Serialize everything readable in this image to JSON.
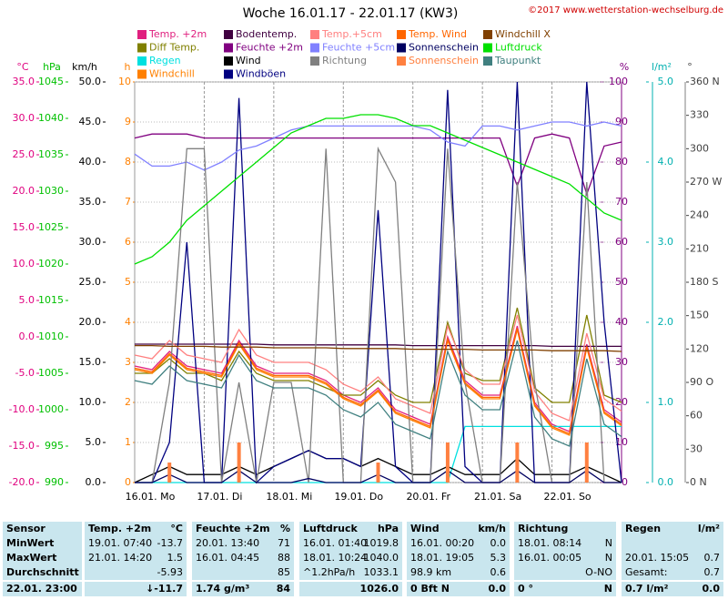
{
  "chart_data": {
    "type": "line",
    "title": "Woche 16.01.17 - 22.01.17 (KW3)",
    "copyright": "©2017 www.wetterstation-wechselburg.de",
    "grid": true,
    "xlim": [
      0,
      7
    ],
    "xticks": [
      {
        "value": 0,
        "label": "16.01. Mo"
      },
      {
        "value": 1,
        "label": "17.01. Di"
      },
      {
        "value": 2,
        "label": "18.01. Mi"
      },
      {
        "value": 3,
        "label": "19.01. Do"
      },
      {
        "value": 4,
        "label": "20.01. Fr"
      },
      {
        "value": 5,
        "label": "21.01. Sa"
      },
      {
        "value": 6,
        "label": "22.01. So"
      }
    ],
    "x": [
      0,
      0.25,
      0.5,
      0.75,
      1,
      1.25,
      1.5,
      1.75,
      2,
      2.25,
      2.5,
      2.75,
      3,
      3.25,
      3.5,
      3.75,
      4,
      4.25,
      4.5,
      4.75,
      5,
      5.25,
      5.5,
      5.75,
      6,
      6.25,
      6.5,
      6.75,
      7
    ],
    "axes": {
      "temp": {
        "label": "°C",
        "color": "#e0007f",
        "lim": [
          -20,
          35
        ],
        "ticks": [
          {
            "value": 35,
            "label": "35.0"
          },
          {
            "value": 30,
            "label": "30.0"
          },
          {
            "value": 25,
            "label": "25.0"
          },
          {
            "value": 20,
            "label": "20.0"
          },
          {
            "value": 15,
            "label": "15.0"
          },
          {
            "value": 10,
            "label": "10.0"
          },
          {
            "value": 5,
            "label": "5.0"
          },
          {
            "value": 0,
            "label": "0.0"
          },
          {
            "value": -5,
            "label": "-5.0"
          },
          {
            "value": -10,
            "label": "-10.0"
          },
          {
            "value": -15,
            "label": "-15.0"
          },
          {
            "value": -20,
            "label": "-20.0"
          }
        ]
      },
      "hpa": {
        "label": "hPa",
        "color": "#00c000",
        "lim": [
          990,
          1045
        ],
        "ticks": [
          1045,
          1040,
          1035,
          1030,
          1025,
          1020,
          1015,
          1010,
          1005,
          1000,
          995,
          990
        ]
      },
      "kmh": {
        "label": "km/h",
        "color": "#000000",
        "lim": [
          0,
          50
        ],
        "ticks": [
          {
            "value": 50,
            "label": "50.0"
          },
          {
            "value": 45,
            "label": "45.0"
          },
          {
            "value": 40,
            "label": "40.0"
          },
          {
            "value": 35,
            "label": "35.0"
          },
          {
            "value": 30,
            "label": "30.0"
          },
          {
            "value": 25,
            "label": "25.0"
          },
          {
            "value": 20,
            "label": "20.0"
          },
          {
            "value": 15,
            "label": "15.0"
          },
          {
            "value": 10,
            "label": "10.0"
          },
          {
            "value": 5,
            "label": "5.0"
          },
          {
            "value": 0,
            "label": "0.0"
          }
        ]
      },
      "h": {
        "label": "h",
        "color": "#ff8000",
        "lim": [
          0,
          10
        ],
        "ticks": [
          10,
          9,
          8,
          7,
          6,
          5,
          4,
          3,
          2,
          1,
          0
        ]
      },
      "pct": {
        "label": "%",
        "color": "#800080",
        "lim": [
          0,
          100
        ],
        "ticks": [
          100,
          90,
          80,
          70,
          60,
          50,
          40,
          30,
          20,
          10,
          0
        ]
      },
      "lm": {
        "label": "l/m²",
        "color": "#00b0b0",
        "lim": [
          0,
          5
        ],
        "ticks": [
          {
            "value": 5,
            "label": "5.0"
          },
          {
            "value": 4,
            "label": "4.0"
          },
          {
            "value": 3,
            "label": "3.0"
          },
          {
            "value": 2,
            "label": "2.0"
          },
          {
            "value": 1,
            "label": "1.0"
          },
          {
            "value": 0,
            "label": "0.0"
          }
        ]
      },
      "deg": {
        "label": "°",
        "color": "#404040",
        "lim": [
          0,
          360
        ],
        "ticks": [
          {
            "value": 360,
            "label": "360 N"
          },
          330,
          300,
          {
            "value": 270,
            "label": "270 W"
          },
          240,
          210,
          {
            "value": 180,
            "label": "180 S"
          },
          150,
          120,
          {
            "value": 90,
            "label": "90 O"
          },
          60,
          30,
          {
            "value": 0,
            "label": "0 N"
          }
        ]
      }
    },
    "series": [
      {
        "name": "Temp. +2m",
        "color": "#e0207f",
        "axis": "temp",
        "values": [
          -4,
          -4.5,
          -2,
          -4,
          -4.5,
          -5,
          -0.5,
          -4,
          -5,
          -5,
          -5,
          -6,
          -8,
          -9,
          -7,
          -10,
          -11,
          -12,
          0,
          -6,
          -8,
          -8,
          1.5,
          -9,
          -12,
          -13,
          -1,
          -10,
          -11.7
        ]
      },
      {
        "name": "Diff Temp.",
        "color": "#808000",
        "axis": "temp",
        "values": [
          -5,
          -5,
          -3,
          -5,
          -5,
          -6,
          -2,
          -5,
          -6,
          -6,
          -6,
          -7,
          -8,
          -8,
          -6,
          -8,
          -9,
          -9,
          2,
          -5,
          -6,
          -6,
          4,
          -7,
          -9,
          -9,
          3,
          -8,
          -9
        ]
      },
      {
        "name": "Regen",
        "color": "#00e0e0",
        "axis": "lm",
        "values": [
          0,
          0,
          0,
          0,
          0,
          0,
          0,
          0,
          0,
          0,
          0,
          0,
          0,
          0,
          0,
          0,
          0,
          0,
          0,
          0.7,
          0.7,
          0.7,
          0.7,
          0.7,
          0.7,
          0.7,
          0.7,
          0.7,
          0.7
        ]
      },
      {
        "name": "Windchill",
        "color": "#ff8000",
        "axis": "temp",
        "values": [
          -4.5,
          -5,
          -2.5,
          -4.5,
          -5,
          -5.5,
          -1,
          -4.5,
          -5.5,
          -5.5,
          -5.5,
          -6.5,
          -8.5,
          -9.5,
          -7.5,
          -10.5,
          -11.5,
          -12.5,
          -0.5,
          -6.5,
          -8.5,
          -8.5,
          1,
          -9.5,
          -12.5,
          -13.5,
          -1.5,
          -10.5,
          -12.2
        ]
      },
      {
        "name": "Bodentemp.",
        "color": "#400040",
        "axis": "temp",
        "values": [
          -1,
          -1,
          -1,
          -1,
          -1,
          -1,
          -1,
          -1,
          -1.1,
          -1.1,
          -1.1,
          -1.1,
          -1.1,
          -1.1,
          -1.1,
          -1.1,
          -1.2,
          -1.2,
          -1.2,
          -1.2,
          -1.2,
          -1.2,
          -1.2,
          -1.2,
          -1.3,
          -1.3,
          -1.3,
          -1.3,
          -1.3
        ]
      },
      {
        "name": "Feuchte +2m",
        "color": "#800080",
        "axis": "pct",
        "values": [
          86,
          87,
          87,
          87,
          86,
          86,
          86,
          86,
          86,
          86,
          86,
          86,
          86,
          86,
          86,
          86,
          86,
          86,
          86,
          86,
          86,
          86,
          74,
          86,
          87,
          86,
          72,
          84,
          85
        ]
      },
      {
        "name": "Wind",
        "color": "#000000",
        "axis": "kmh",
        "values": [
          0,
          1,
          2,
          1,
          1,
          1,
          2,
          1,
          2,
          3,
          4,
          3,
          3,
          2,
          3,
          2,
          1,
          1,
          2,
          1,
          1,
          1,
          3,
          1,
          1,
          1,
          2,
          1,
          0
        ]
      },
      {
        "name": "Windböen",
        "color": "#000080",
        "axis": "kmh",
        "values": [
          0,
          0,
          5,
          30,
          0,
          0,
          48,
          0,
          2,
          3,
          4,
          3,
          3,
          2,
          34,
          2,
          0,
          0,
          49,
          2,
          0,
          0,
          50,
          0,
          0,
          0,
          50,
          20,
          0
        ]
      },
      {
        "name": "Temp.+5cm",
        "color": "#ff8080",
        "axis": "temp",
        "values": [
          -2.5,
          -3,
          -0.5,
          -2.5,
          -3,
          -3.5,
          1,
          -2.5,
          -3.5,
          -3.5,
          -3.5,
          -4.5,
          -6.5,
          -7.5,
          -5.5,
          -8.5,
          -9.5,
          -10.5,
          1.5,
          -4.5,
          -6.5,
          -6.5,
          3,
          -7.5,
          -10.5,
          -11.5,
          0.5,
          -8.5,
          -10.2
        ]
      },
      {
        "name": "Feuchte +5cm",
        "color": "#8080ff",
        "axis": "pct",
        "values": [
          82,
          79,
          79,
          80,
          78,
          80,
          83,
          84,
          86,
          88,
          89,
          89,
          89,
          89,
          89,
          89,
          89,
          88,
          85,
          84,
          89,
          89,
          88,
          89,
          90,
          90,
          89,
          90,
          89
        ]
      },
      {
        "name": "Richtung",
        "color": "#808080",
        "axis": "deg",
        "values": [
          0,
          0,
          90,
          300,
          300,
          0,
          90,
          0,
          90,
          90,
          0,
          300,
          0,
          0,
          300,
          270,
          0,
          0,
          300,
          90,
          0,
          0,
          270,
          90,
          0,
          0,
          270,
          0,
          0
        ]
      },
      {
        "name": "Temp. Wind",
        "color": "#ff6600",
        "axis": "temp",
        "values": [
          -4.3,
          -4.8,
          -2.3,
          -4.3,
          -4.8,
          -5.3,
          -0.8,
          -4.3,
          -5.3,
          -5.3,
          -5.3,
          -6.3,
          -8.3,
          -9.3,
          -7.3,
          -10.3,
          -11.3,
          -12.3,
          -0.3,
          -6.3,
          -8.3,
          -8.3,
          1.2,
          -9.3,
          -12.3,
          -13.3,
          -1.3,
          -10.3,
          -12
        ]
      },
      {
        "name": "Sonnenschein",
        "color": "#000060",
        "axis": "h",
        "values": [
          0,
          0,
          0.2,
          0,
          0,
          0,
          0.3,
          0,
          0,
          0,
          0.1,
          0,
          0,
          0,
          0.2,
          0,
          0,
          0,
          0.3,
          0,
          0,
          0,
          0.3,
          0,
          0,
          0,
          0.3,
          0,
          0
        ]
      },
      {
        "name": "Sonnenschein",
        "color": "#ff8040",
        "axis": "h",
        "style": "bars",
        "values": [
          0,
          0,
          0.5,
          0,
          0,
          0,
          1,
          0,
          0,
          0,
          0,
          0,
          0,
          0,
          0.5,
          0,
          0,
          0,
          1,
          0,
          0,
          0,
          1,
          0,
          0,
          0,
          1,
          0,
          0
        ]
      },
      {
        "name": "Windchill X",
        "color": "#804000",
        "axis": "temp",
        "values": [
          -1.2,
          -1.2,
          -1.3,
          -1.3,
          -1.3,
          -1.4,
          -1.4,
          -1.4,
          -1.5,
          -1.5,
          -1.5,
          -1.5,
          -1.6,
          -1.6,
          -1.6,
          -1.6,
          -1.7,
          -1.7,
          -1.7,
          -1.7,
          -1.8,
          -1.8,
          -1.8,
          -1.8,
          -1.9,
          -1.9,
          -1.9,
          -1.9,
          -2
        ]
      },
      {
        "name": "Luftdruck",
        "color": "#00e000",
        "axis": "hpa",
        "values": [
          1020,
          1021,
          1023,
          1026,
          1028,
          1030,
          1032,
          1034,
          1036,
          1038,
          1039,
          1040,
          1040,
          1040.5,
          1040.5,
          1040,
          1039,
          1039,
          1038,
          1037,
          1036,
          1035,
          1034,
          1033,
          1032,
          1031,
          1029,
          1027,
          1026
        ]
      },
      {
        "name": "Taupunkt",
        "color": "#408080",
        "axis": "temp",
        "values": [
          -6,
          -6.5,
          -4,
          -6,
          -6.5,
          -7,
          -2.5,
          -6,
          -7,
          -7,
          -7,
          -8,
          -10,
          -11,
          -9,
          -12,
          -13,
          -14,
          -2,
          -8,
          -10,
          -10,
          -0.5,
          -11,
          -14,
          -15,
          -3,
          -12,
          -13.7
        ]
      }
    ]
  },
  "table": {
    "header": [
      "Sensor",
      "Temp. +2m",
      "°C",
      "Feuchte +2m",
      "%",
      "Luftdruck",
      "hPa",
      "Wind",
      "km/h",
      "Richtung",
      null,
      "Regen",
      "l/m²"
    ],
    "rows": [
      [
        "MinWert",
        "19.01. 07:40",
        "-13.7",
        "20.01. 13:40",
        "71",
        "16.01. 01:40",
        "1019.8",
        "16.01. 00:20",
        "0.0",
        "18.01. 08:14",
        "N",
        null,
        null
      ],
      [
        "MaxWert",
        "21.01. 14:20",
        "1.5",
        "16.01. 04:45",
        "88",
        "18.01. 10:24",
        "1040.0",
        "18.01. 19:05",
        "5.3",
        "16.01. 00:05",
        "N",
        "20.01. 15:05",
        "0.7"
      ],
      [
        "Durchschnitt",
        null,
        "-5.93",
        null,
        "85",
        "^1.2hPa/h",
        "1033.1",
        "98.9 km",
        "0.6",
        null,
        "O-NO",
        "Gesamt:",
        "0.7"
      ],
      [
        "22.01. 23:00",
        null,
        "↓-11.7",
        "1.74 g/m³",
        "84",
        null,
        "1026.0",
        "0 Bft N",
        "0.0",
        "0 °",
        "N",
        "0.7 l/m²",
        "0.0"
      ]
    ]
  }
}
